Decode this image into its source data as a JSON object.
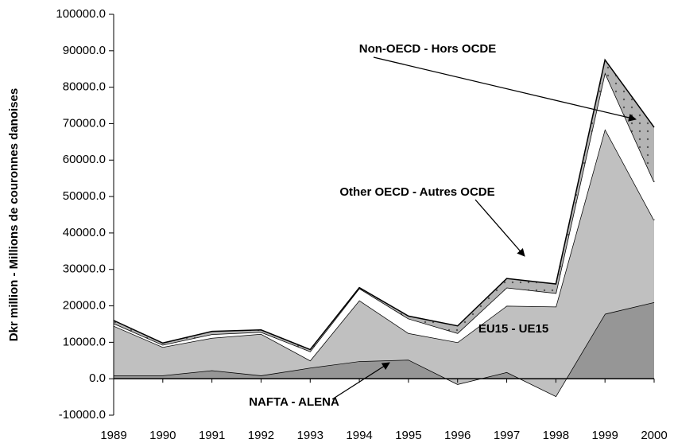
{
  "chart_data": {
    "type": "stacked_area",
    "y_label": "Dkr million - Millions de couronnes danoises",
    "x": [
      1989,
      1990,
      1991,
      1992,
      1993,
      1994,
      1995,
      1996,
      1997,
      1998,
      1999,
      2000
    ],
    "xlim": [
      1989,
      2000
    ],
    "series": [
      {
        "name": "NAFTA - ALENA",
        "color": "#969696",
        "values": [
          900,
          900,
          2300,
          900,
          3000,
          4800,
          5200,
          -1500,
          1800,
          -4800,
          17800,
          21000
        ]
      },
      {
        "name": "EU15 - UE15",
        "color": "#c0c0c0",
        "values": [
          13600,
          7800,
          8900,
          11400,
          2000,
          16700,
          7300,
          11500,
          18200,
          24600,
          50700,
          22500
        ]
      },
      {
        "name": "Other OECD - Autres OCDE",
        "color": "#ffffff",
        "values": [
          700,
          600,
          1000,
          500,
          2500,
          3300,
          4000,
          2500,
          5000,
          3700,
          15500,
          10500
        ]
      },
      {
        "name": "Non-OECD - Hors OCDE",
        "color": "#b4b4b4",
        "values": [
          800,
          500,
          800,
          600,
          500,
          200,
          700,
          2000,
          2500,
          2500,
          3500,
          15000
        ]
      }
    ],
    "ylim": [
      -10000,
      100000
    ],
    "yticks": [
      {
        "value": -10000,
        "label": "-10000.0"
      },
      {
        "value": 0,
        "label": "0.0"
      },
      {
        "value": 10000,
        "label": "10000.0"
      },
      {
        "value": 20000,
        "label": "20000.0"
      },
      {
        "value": 30000,
        "label": "30000.0"
      },
      {
        "value": 40000,
        "label": "40000.0"
      },
      {
        "value": 50000,
        "label": "50000.0"
      },
      {
        "value": 60000,
        "label": "60000.0"
      },
      {
        "value": 70000,
        "label": "70000.0"
      },
      {
        "value": 80000,
        "label": "80000.0"
      },
      {
        "value": 90000,
        "label": "90000.0"
      },
      {
        "value": 100000,
        "label": "100000.0"
      }
    ]
  }
}
